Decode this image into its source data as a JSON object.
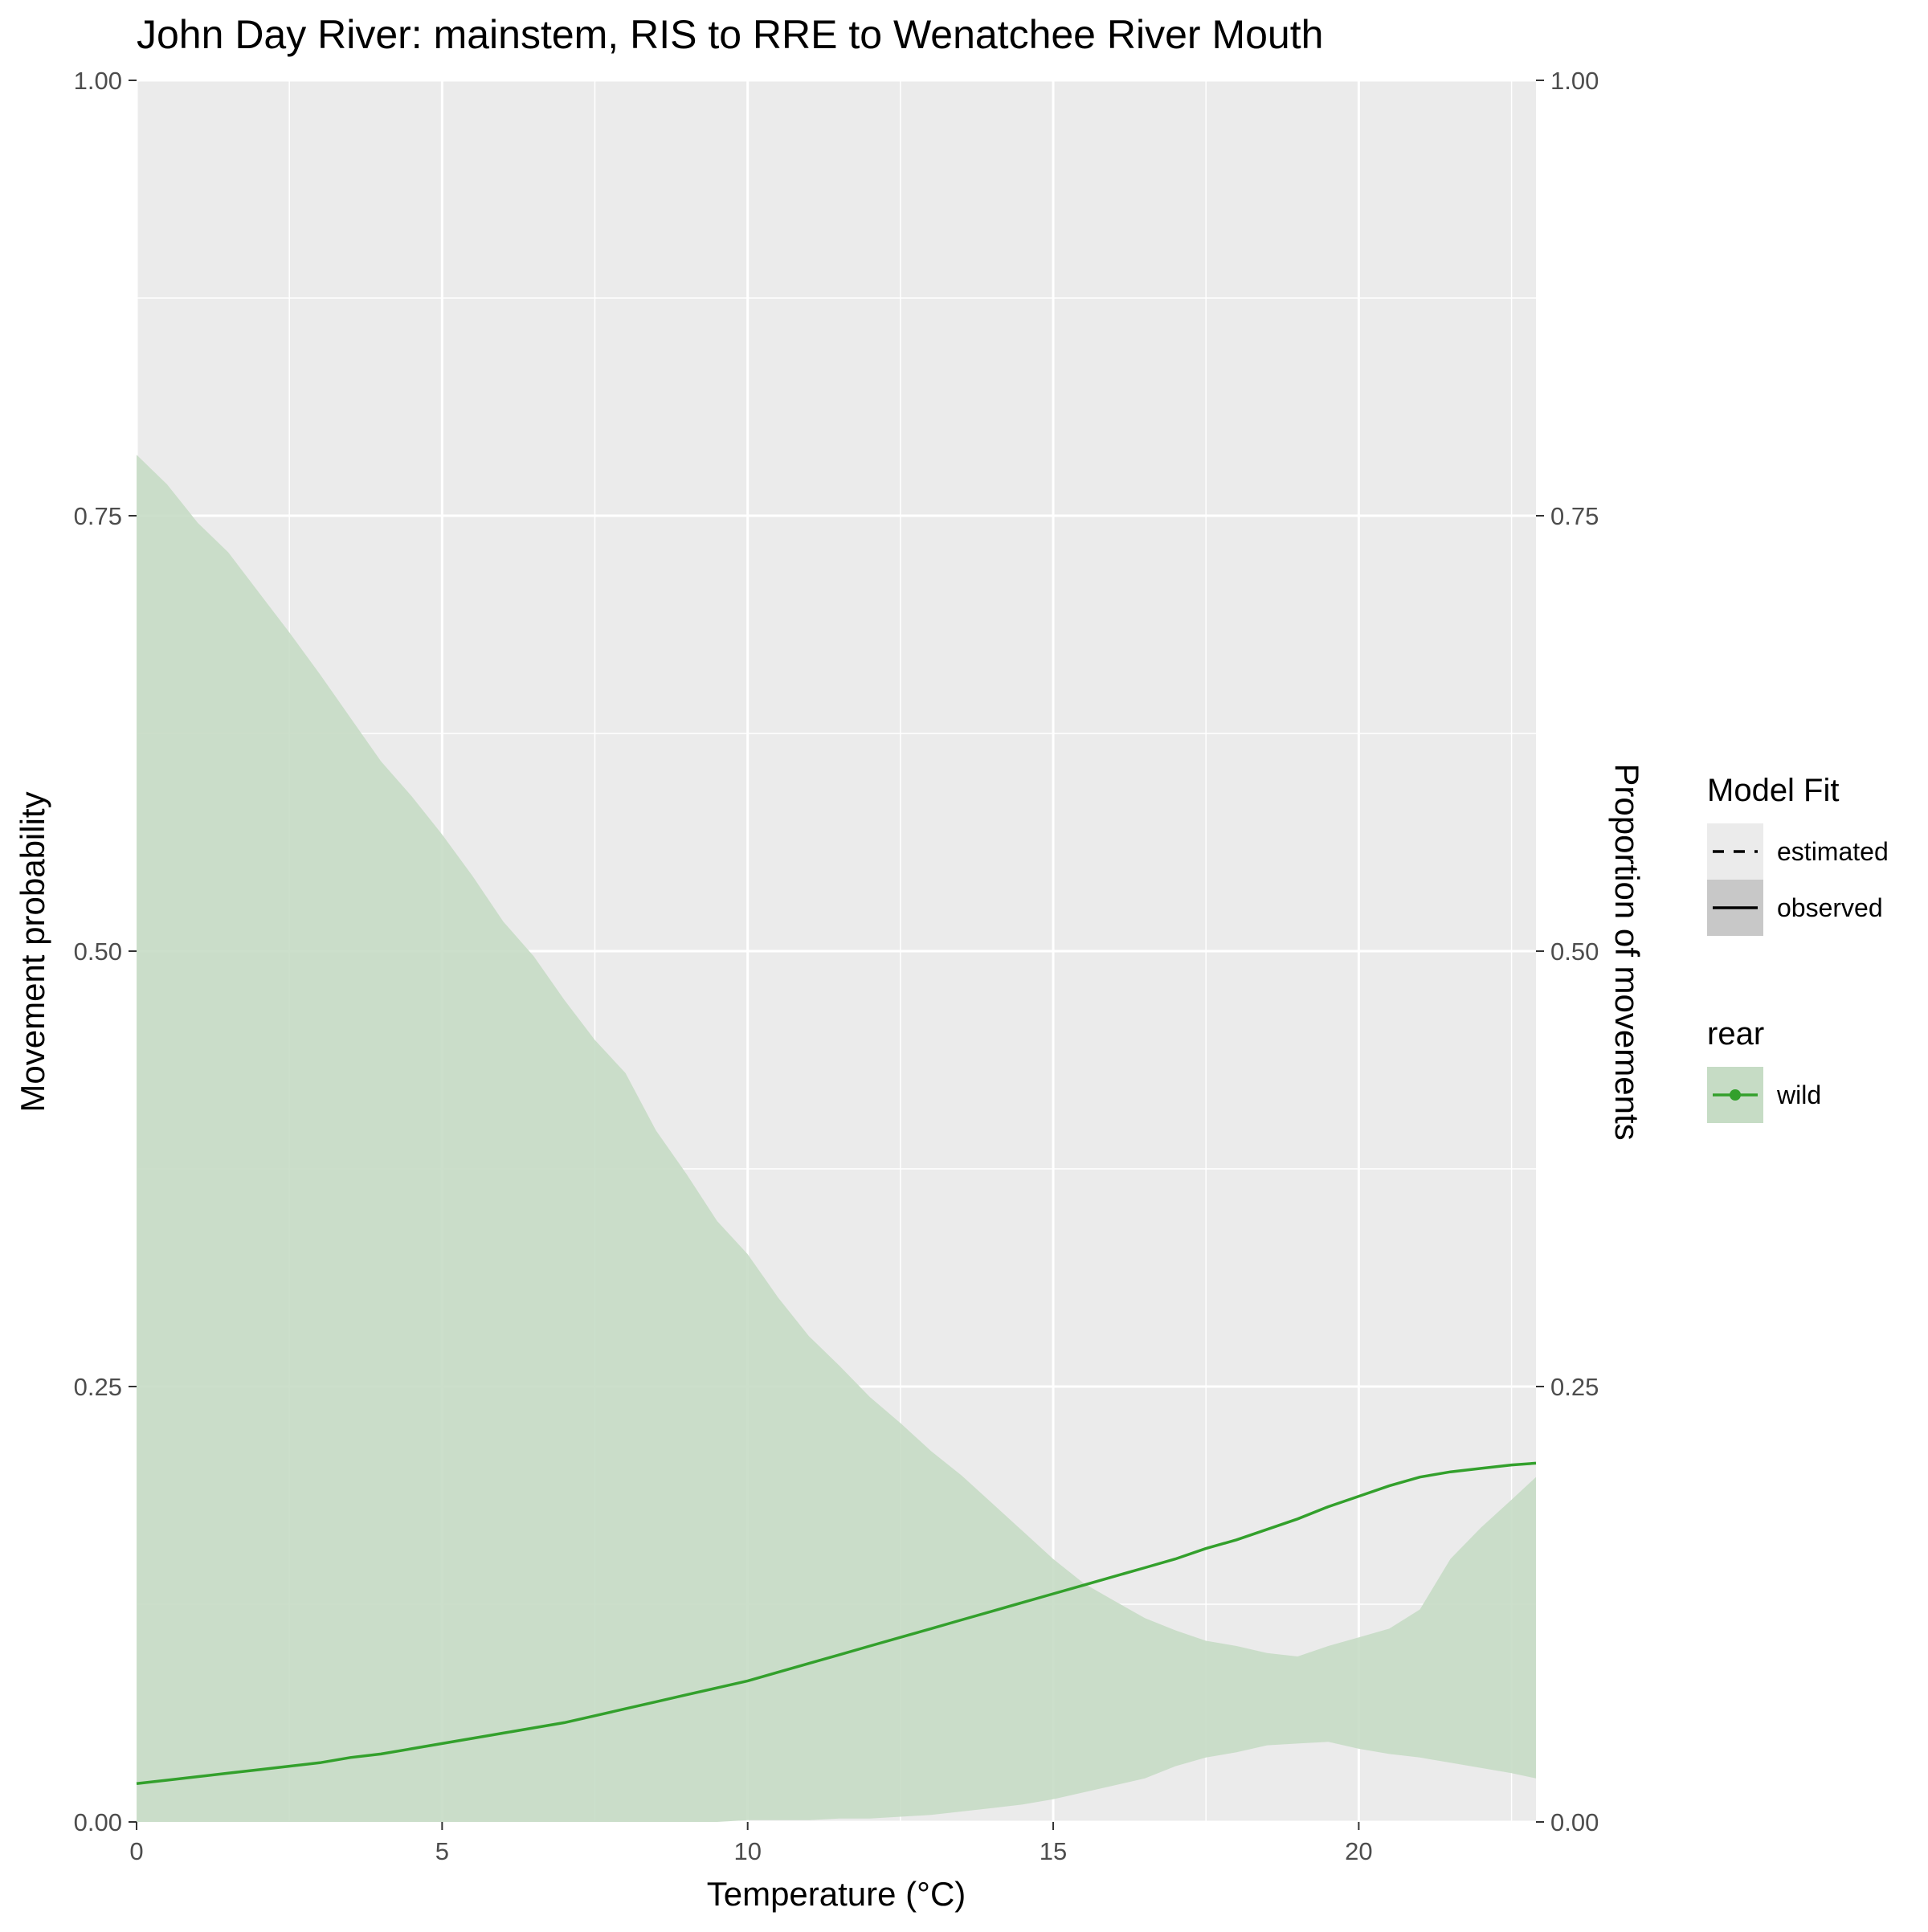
{
  "chart_data": {
    "type": "line",
    "title": "John Day River: mainstem, RIS to RRE to Wenatchee River Mouth",
    "xlabel": "Temperature (°C)",
    "ylabel": "Movement probability",
    "ylabel_right": "Proportion of movements",
    "xlim": [
      0,
      22.9
    ],
    "ylim": [
      0,
      1
    ],
    "x_ticks": [
      0,
      5,
      10,
      15,
      20
    ],
    "x_tick_labels": [
      "0",
      "5",
      "10",
      "15",
      "20"
    ],
    "y_ticks": [
      0,
      0.25,
      0.5,
      0.75,
      1
    ],
    "y_tick_labels": [
      "0.00",
      "0.25",
      "0.50",
      "0.75",
      "1.00"
    ],
    "grid": true,
    "legend_position": "right",
    "legends": [
      {
        "title": "Model Fit",
        "entries": [
          {
            "label": "estimated",
            "line": "dashed"
          },
          {
            "label": "observed",
            "line": "solid"
          }
        ]
      },
      {
        "title": "rear",
        "entries": [
          {
            "label": "wild",
            "color": "#33a02c"
          }
        ]
      }
    ],
    "series": [
      {
        "name": "wild",
        "color": "#33a02c",
        "ribbon_color": "#c6dcc5",
        "x": [
          0,
          0.5,
          1,
          1.5,
          2,
          2.5,
          3,
          3.5,
          4,
          4.5,
          5,
          5.5,
          6,
          6.5,
          7,
          7.5,
          8,
          8.5,
          9,
          9.5,
          10,
          10.5,
          11,
          11.5,
          12,
          12.5,
          13,
          13.5,
          14,
          14.5,
          15,
          15.5,
          16,
          16.5,
          17,
          17.5,
          18,
          18.5,
          19,
          19.5,
          20,
          20.5,
          21,
          21.5,
          22,
          22.5,
          22.9
        ],
        "y": [
          0.022,
          0.024,
          0.026,
          0.028,
          0.03,
          0.032,
          0.034,
          0.037,
          0.039,
          0.042,
          0.045,
          0.048,
          0.051,
          0.054,
          0.057,
          0.061,
          0.065,
          0.069,
          0.073,
          0.077,
          0.081,
          0.086,
          0.091,
          0.096,
          0.101,
          0.106,
          0.111,
          0.116,
          0.121,
          0.126,
          0.131,
          0.136,
          0.141,
          0.146,
          0.151,
          0.157,
          0.162,
          0.168,
          0.174,
          0.181,
          0.187,
          0.193,
          0.198,
          0.201,
          0.203,
          0.205,
          0.206
        ],
        "lower": [
          0,
          0,
          0,
          0,
          0,
          0,
          0,
          0,
          0,
          0,
          0,
          0,
          0,
          0,
          0,
          0,
          0,
          0,
          0,
          0,
          0.001,
          0.001,
          0.001,
          0.002,
          0.002,
          0.003,
          0.004,
          0.006,
          0.008,
          0.01,
          0.013,
          0.017,
          0.021,
          0.025,
          0.032,
          0.037,
          0.04,
          0.044,
          0.045,
          0.046,
          0.042,
          0.039,
          0.037,
          0.034,
          0.031,
          0.028,
          0.025
        ],
        "upper": [
          0.785,
          0.768,
          0.746,
          0.729,
          0.706,
          0.683,
          0.659,
          0.634,
          0.609,
          0.589,
          0.567,
          0.543,
          0.517,
          0.497,
          0.472,
          0.449,
          0.43,
          0.397,
          0.372,
          0.345,
          0.326,
          0.301,
          0.279,
          0.262,
          0.244,
          0.229,
          0.213,
          0.199,
          0.183,
          0.167,
          0.151,
          0.137,
          0.127,
          0.117,
          0.11,
          0.104,
          0.101,
          0.097,
          0.095,
          0.101,
          0.106,
          0.111,
          0.122,
          0.151,
          0.169,
          0.185,
          0.198
        ]
      }
    ]
  }
}
